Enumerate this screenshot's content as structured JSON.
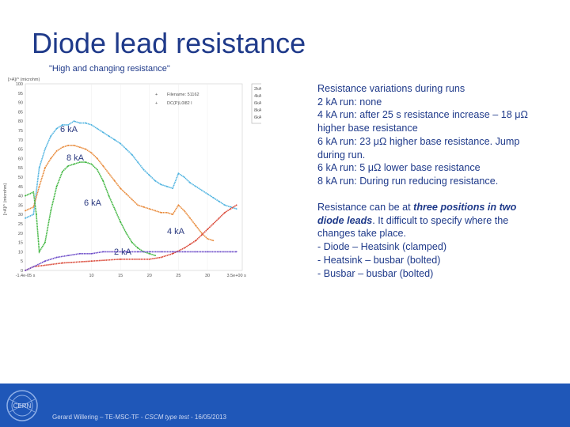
{
  "slide": {
    "title": "Diode lead resistance",
    "subtitle": "\"High and changing resistance\""
  },
  "chart_data": {
    "type": "line",
    "ylabel": "[>A]/^ (microhm)",
    "yticks": [
      "100",
      "95",
      "90",
      "85",
      "80",
      "75",
      "70",
      "65",
      "60",
      "55",
      "50",
      "45",
      "40",
      "35",
      "30",
      "25",
      "20",
      "15",
      "10",
      "5",
      "0"
    ],
    "xticks": [
      "-1.4e-05 s",
      "10",
      "15",
      "20",
      "25",
      "30",
      "3.5e+00 s"
    ],
    "legend_files": [
      "Filename: 51162",
      "DC(P)L0l82 l"
    ],
    "legend_items": [
      "2kA",
      "4kA",
      "6kA",
      "8kA",
      "6kA"
    ],
    "curve_labels": {
      "six_top": "6 kA",
      "eight": "8 kA",
      "six_mid": "6 kA",
      "four": "4 kA",
      "two": "2 kA"
    },
    "series": [
      {
        "name": "6 kA",
        "color": "#4fb3e0",
        "x": [
          -1.4,
          0,
          1,
          2,
          3,
          4,
          5,
          6,
          7,
          8,
          9,
          10,
          11,
          12,
          13,
          14,
          15,
          16,
          17,
          18,
          19,
          20,
          21,
          22,
          23,
          24,
          25,
          26,
          27,
          28,
          29,
          30,
          31,
          32,
          33,
          34,
          35
        ],
        "y": [
          28,
          30,
          55,
          65,
          72,
          76,
          78,
          78,
          80,
          79,
          79,
          78,
          76,
          74,
          72,
          70,
          68,
          65,
          62,
          58,
          54,
          51,
          48,
          46,
          45,
          44,
          52,
          50,
          47,
          45,
          43,
          41,
          39,
          37,
          35,
          34,
          33
        ]
      },
      {
        "name": "8 kA",
        "color": "#e88a3a",
        "x": [
          -1.4,
          0,
          1,
          2,
          3,
          4,
          5,
          6,
          7,
          8,
          9,
          10,
          11,
          12,
          13,
          14,
          15,
          16,
          17,
          18,
          19,
          20,
          21,
          22,
          23,
          24,
          25,
          26,
          27,
          28,
          29,
          30,
          31
        ],
        "y": [
          32,
          34,
          45,
          55,
          60,
          64,
          66,
          67,
          67,
          66,
          65,
          63,
          60,
          56,
          52,
          48,
          44,
          41,
          38,
          35,
          34,
          33,
          32,
          31,
          31,
          30,
          35,
          32,
          28,
          24,
          20,
          17,
          16
        ]
      },
      {
        "name": "6 kA",
        "color": "#3fb63f",
        "x": [
          -1.4,
          0,
          0.5,
          1,
          2,
          3,
          4,
          5,
          6,
          7,
          8,
          9,
          10,
          11,
          12,
          13,
          14,
          15,
          16,
          17,
          18,
          19,
          20,
          21
        ],
        "y": [
          40,
          42,
          30,
          10,
          15,
          32,
          45,
          53,
          56,
          57,
          58,
          58,
          57,
          54,
          48,
          40,
          33,
          26,
          20,
          15,
          12,
          10,
          9,
          8
        ]
      },
      {
        "name": "4 kA",
        "color": "#d94433",
        "x": [
          -1.4,
          0,
          5,
          10,
          15,
          20,
          22,
          24,
          26,
          27,
          28,
          29,
          30,
          31,
          32,
          33,
          34,
          35
        ],
        "y": [
          0,
          2,
          4,
          5,
          6,
          6,
          7,
          9,
          12,
          14,
          16,
          19,
          22,
          25,
          28,
          31,
          33,
          35
        ]
      },
      {
        "name": "2 kA",
        "color": "#6b4ac8",
        "x": [
          -1.4,
          0,
          2,
          4,
          6,
          8,
          10,
          12,
          14,
          16,
          18,
          20,
          22,
          24,
          26,
          28,
          30,
          32,
          34,
          35
        ],
        "y": [
          0,
          2,
          5,
          7,
          8,
          9,
          9,
          10,
          10,
          10,
          10,
          10,
          10,
          10,
          10,
          10,
          10,
          10,
          10,
          10
        ]
      }
    ],
    "xlim": [
      -1.4,
      36
    ],
    "ylim": [
      0,
      100
    ]
  },
  "right": {
    "para1": [
      "Resistance variations during runs",
      "2 kA run: none",
      "4 kA run: after 25 s resistance increase – 18 μΩ",
      "higher base resistance",
      "6 kA run: 23 μΩ higher base resistance. Jump",
      "during run.",
      "6 kA run: 5 μΩ lower base resistance",
      "8 kA run: During run reducing resistance."
    ],
    "para2": {
      "l1_pre": "Resistance can be at ",
      "l1_em": "three positions in two",
      "l2_em": "diode leads",
      "l2_post": ". It difficult to specify where the",
      "l3": "changes take place.",
      "l4": "- Diode – Heatsink (clamped)",
      "l5": "- Heatsink – busbar (bolted)",
      "l6": "- Busbar – busbar (bolted)"
    }
  },
  "footer": {
    "logo_text": "CERN",
    "text_pre": "Gerard Willering – TE-MSC-TF - ",
    "text_italic": "CSCM type test",
    "text_post": " - 16/05/2013"
  }
}
